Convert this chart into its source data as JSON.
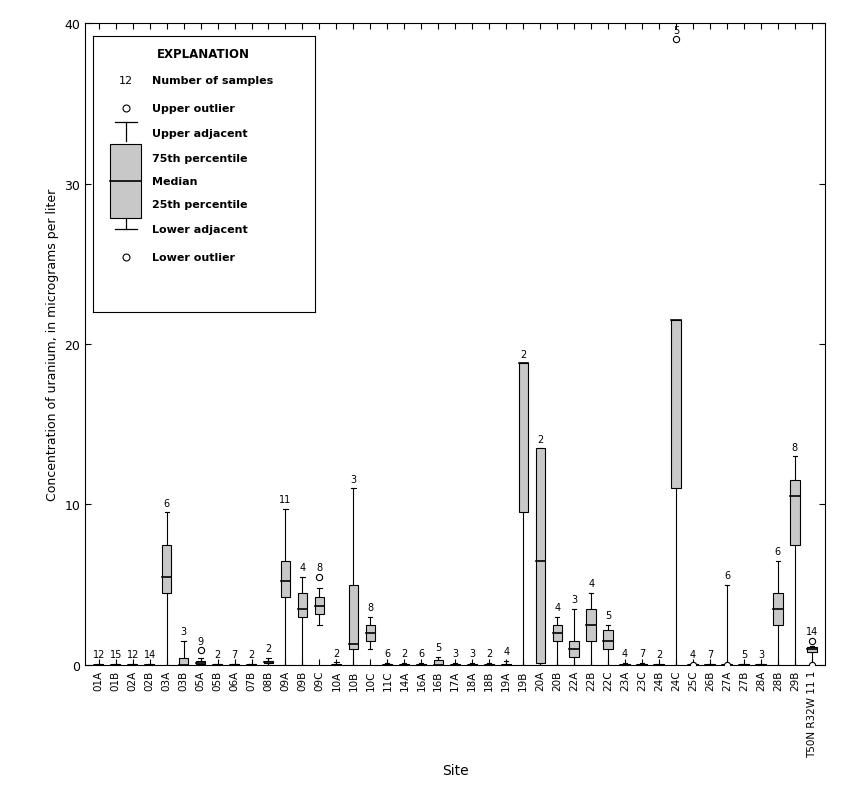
{
  "sites": [
    "01A",
    "01B",
    "02A",
    "02B",
    "03A",
    "03B",
    "05A",
    "05B",
    "06A",
    "07B",
    "08B",
    "09A",
    "09B",
    "09C",
    "10A",
    "10B",
    "10C",
    "11C",
    "14A",
    "16A",
    "16B",
    "17A",
    "18A",
    "18B",
    "19A",
    "19B",
    "20A",
    "20B",
    "22A",
    "22B",
    "22C",
    "23A",
    "23C",
    "24B",
    "24C",
    "25C",
    "26B",
    "27A",
    "27B",
    "28A",
    "28B",
    "29B",
    "T50N R32W 11 1"
  ],
  "n_samples": [
    12,
    15,
    12,
    14,
    6,
    3,
    9,
    2,
    7,
    2,
    2,
    11,
    4,
    8,
    2,
    3,
    8,
    6,
    2,
    6,
    5,
    3,
    3,
    2,
    4,
    2,
    2,
    4,
    3,
    4,
    5,
    4,
    7,
    2,
    5,
    4,
    7,
    6,
    5,
    3,
    6,
    8,
    14
  ],
  "boxes": [
    {
      "q1": 0.0,
      "med": 0.0,
      "q3": 0.05,
      "lo_adj": 0.0,
      "hi_adj": 0.05,
      "outliers_hi": [],
      "outliers_lo": []
    },
    {
      "q1": 0.0,
      "med": 0.0,
      "q3": 0.05,
      "lo_adj": 0.0,
      "hi_adj": 0.05,
      "outliers_hi": [],
      "outliers_lo": []
    },
    {
      "q1": 0.0,
      "med": 0.0,
      "q3": 0.05,
      "lo_adj": 0.0,
      "hi_adj": 0.05,
      "outliers_hi": [],
      "outliers_lo": []
    },
    {
      "q1": 0.0,
      "med": 0.0,
      "q3": 0.05,
      "lo_adj": 0.0,
      "hi_adj": 0.05,
      "outliers_hi": [],
      "outliers_lo": []
    },
    {
      "q1": 4.5,
      "med": 5.5,
      "q3": 7.5,
      "lo_adj": 0.0,
      "hi_adj": 9.5,
      "outliers_hi": [],
      "outliers_lo": []
    },
    {
      "q1": 0.0,
      "med": 0.0,
      "q3": 0.4,
      "lo_adj": 0.0,
      "hi_adj": 1.5,
      "outliers_hi": [],
      "outliers_lo": []
    },
    {
      "q1": 0.05,
      "med": 0.1,
      "q3": 0.25,
      "lo_adj": 0.0,
      "hi_adj": 0.4,
      "outliers_hi": [
        0.9
      ],
      "outliers_lo": []
    },
    {
      "q1": 0.0,
      "med": 0.0,
      "q3": 0.05,
      "lo_adj": 0.0,
      "hi_adj": 0.05,
      "outliers_hi": [],
      "outliers_lo": []
    },
    {
      "q1": 0.0,
      "med": 0.0,
      "q3": 0.05,
      "lo_adj": 0.0,
      "hi_adj": 0.05,
      "outliers_hi": [],
      "outliers_lo": []
    },
    {
      "q1": 0.0,
      "med": 0.0,
      "q3": 0.05,
      "lo_adj": 0.0,
      "hi_adj": 0.05,
      "outliers_hi": [],
      "outliers_lo": []
    },
    {
      "q1": 0.1,
      "med": 0.15,
      "q3": 0.25,
      "lo_adj": 0.0,
      "hi_adj": 0.45,
      "outliers_hi": [],
      "outliers_lo": []
    },
    {
      "q1": 4.2,
      "med": 5.2,
      "q3": 6.5,
      "lo_adj": 0.0,
      "hi_adj": 9.7,
      "outliers_hi": [],
      "outliers_lo": []
    },
    {
      "q1": 3.0,
      "med": 3.5,
      "q3": 4.5,
      "lo_adj": 0.0,
      "hi_adj": 5.5,
      "outliers_hi": [],
      "outliers_lo": []
    },
    {
      "q1": 3.2,
      "med": 3.7,
      "q3": 4.2,
      "lo_adj": 2.5,
      "hi_adj": 4.8,
      "outliers_hi": [
        5.5
      ],
      "outliers_lo": []
    },
    {
      "q1": 0.0,
      "med": 0.0,
      "q3": 0.05,
      "lo_adj": 0.0,
      "hi_adj": 0.15,
      "outliers_hi": [],
      "outliers_lo": []
    },
    {
      "q1": 1.0,
      "med": 1.3,
      "q3": 5.0,
      "lo_adj": 0.0,
      "hi_adj": 11.0,
      "outliers_hi": [],
      "outliers_lo": []
    },
    {
      "q1": 1.5,
      "med": 2.0,
      "q3": 2.5,
      "lo_adj": 1.0,
      "hi_adj": 3.0,
      "outliers_hi": [],
      "outliers_lo": []
    },
    {
      "q1": 0.0,
      "med": 0.0,
      "q3": 0.05,
      "lo_adj": 0.0,
      "hi_adj": 0.1,
      "outliers_hi": [],
      "outliers_lo": []
    },
    {
      "q1": 0.0,
      "med": 0.0,
      "q3": 0.05,
      "lo_adj": 0.0,
      "hi_adj": 0.1,
      "outliers_hi": [],
      "outliers_lo": []
    },
    {
      "q1": 0.0,
      "med": 0.0,
      "q3": 0.05,
      "lo_adj": 0.0,
      "hi_adj": 0.1,
      "outliers_hi": [],
      "outliers_lo": []
    },
    {
      "q1": 0.0,
      "med": 0.0,
      "q3": 0.3,
      "lo_adj": 0.0,
      "hi_adj": 0.5,
      "outliers_hi": [],
      "outliers_lo": []
    },
    {
      "q1": 0.0,
      "med": 0.0,
      "q3": 0.05,
      "lo_adj": 0.0,
      "hi_adj": 0.1,
      "outliers_hi": [],
      "outliers_lo": []
    },
    {
      "q1": 0.0,
      "med": 0.0,
      "q3": 0.05,
      "lo_adj": 0.0,
      "hi_adj": 0.1,
      "outliers_hi": [],
      "outliers_lo": []
    },
    {
      "q1": 0.0,
      "med": 0.0,
      "q3": 0.05,
      "lo_adj": 0.0,
      "hi_adj": 0.1,
      "outliers_hi": [],
      "outliers_lo": []
    },
    {
      "q1": 0.0,
      "med": 0.0,
      "q3": 0.05,
      "lo_adj": 0.0,
      "hi_adj": 0.25,
      "outliers_hi": [],
      "outliers_lo": []
    },
    {
      "q1": 9.5,
      "med": 18.8,
      "q3": 18.8,
      "lo_adj": 0.0,
      "hi_adj": 18.8,
      "outliers_hi": [],
      "outliers_lo": []
    },
    {
      "q1": 0.1,
      "med": 6.5,
      "q3": 13.5,
      "lo_adj": 0.0,
      "hi_adj": 13.5,
      "outliers_hi": [],
      "outliers_lo": []
    },
    {
      "q1": 1.5,
      "med": 2.0,
      "q3": 2.5,
      "lo_adj": 0.0,
      "hi_adj": 3.0,
      "outliers_hi": [],
      "outliers_lo": []
    },
    {
      "q1": 0.5,
      "med": 1.0,
      "q3": 1.5,
      "lo_adj": 0.0,
      "hi_adj": 3.5,
      "outliers_hi": [],
      "outliers_lo": []
    },
    {
      "q1": 1.5,
      "med": 2.5,
      "q3": 3.5,
      "lo_adj": 0.0,
      "hi_adj": 4.5,
      "outliers_hi": [],
      "outliers_lo": []
    },
    {
      "q1": 1.0,
      "med": 1.5,
      "q3": 2.2,
      "lo_adj": 0.0,
      "hi_adj": 2.5,
      "outliers_hi": [],
      "outliers_lo": []
    },
    {
      "q1": 0.0,
      "med": 0.0,
      "q3": 0.05,
      "lo_adj": 0.0,
      "hi_adj": 0.1,
      "outliers_hi": [],
      "outliers_lo": []
    },
    {
      "q1": 0.0,
      "med": 0.0,
      "q3": 0.05,
      "lo_adj": 0.0,
      "hi_adj": 0.1,
      "outliers_hi": [],
      "outliers_lo": []
    },
    {
      "q1": 0.0,
      "med": 0.0,
      "q3": 0.05,
      "lo_adj": 0.0,
      "hi_adj": 0.05,
      "outliers_hi": [],
      "outliers_lo": []
    },
    {
      "q1": 11.0,
      "med": 21.5,
      "q3": 21.5,
      "lo_adj": 0.0,
      "hi_adj": 21.5,
      "outliers_hi": [
        39.0
      ],
      "outliers_lo": []
    },
    {
      "q1": 0.0,
      "med": 0.0,
      "q3": 0.05,
      "lo_adj": 0.0,
      "hi_adj": 0.05,
      "outliers_hi": [],
      "outliers_lo": [
        -0.3
      ]
    },
    {
      "q1": 0.0,
      "med": 0.0,
      "q3": 0.05,
      "lo_adj": 0.0,
      "hi_adj": 0.05,
      "outliers_hi": [],
      "outliers_lo": []
    },
    {
      "q1": 0.0,
      "med": 0.0,
      "q3": 0.05,
      "lo_adj": 0.0,
      "hi_adj": 5.0,
      "outliers_hi": [],
      "outliers_lo": [
        -0.3
      ]
    },
    {
      "q1": 0.0,
      "med": 0.0,
      "q3": 0.05,
      "lo_adj": 0.0,
      "hi_adj": 0.05,
      "outliers_hi": [],
      "outliers_lo": []
    },
    {
      "q1": 0.0,
      "med": 0.0,
      "q3": 0.05,
      "lo_adj": 0.0,
      "hi_adj": 0.05,
      "outliers_hi": [],
      "outliers_lo": []
    },
    {
      "q1": 2.5,
      "med": 3.5,
      "q3": 4.5,
      "lo_adj": 0.0,
      "hi_adj": 6.5,
      "outliers_hi": [],
      "outliers_lo": []
    },
    {
      "q1": 7.5,
      "med": 10.5,
      "q3": 11.5,
      "lo_adj": 0.0,
      "hi_adj": 13.0,
      "outliers_hi": [],
      "outliers_lo": []
    },
    {
      "q1": 0.8,
      "med": 1.0,
      "q3": 1.1,
      "lo_adj": 0.0,
      "hi_adj": 1.2,
      "outliers_hi": [
        1.5
      ],
      "outliers_lo": [
        -0.3
      ]
    }
  ],
  "ylabel": "Concentration of uranium, in micrograms per liter",
  "xlabel": "Site",
  "ylim": [
    0,
    40
  ],
  "yticks": [
    0,
    10,
    20,
    30,
    40
  ],
  "box_color": "#c8c8c8",
  "box_edgecolor": "#000000",
  "whisker_color": "#000000",
  "median_color": "#000000"
}
